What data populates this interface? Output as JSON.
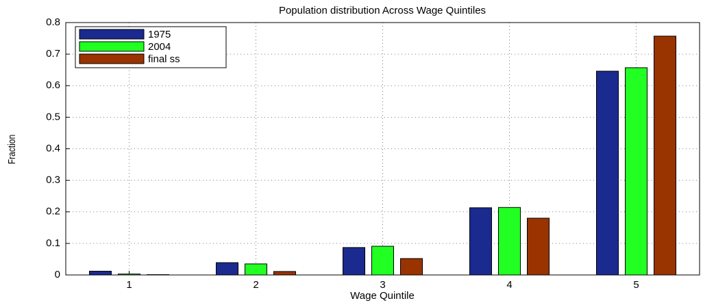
{
  "chart_data": {
    "type": "bar",
    "title": "Population distribution Across Wage Quintiles",
    "x_label": "Wage Quintile",
    "y_label": "Fraction",
    "categories": [
      "1",
      "2",
      "3",
      "4",
      "5"
    ],
    "series": [
      {
        "name": "1975",
        "color": "#1b2a8f",
        "values": [
          0.012,
          0.039,
          0.087,
          0.213,
          0.646
        ]
      },
      {
        "name": "2004",
        "color": "#22ff22",
        "values": [
          0.003,
          0.035,
          0.091,
          0.214,
          0.657
        ]
      },
      {
        "name": "final ss",
        "color": "#993300",
        "values": [
          0.001,
          0.011,
          0.052,
          0.18,
          0.757
        ]
      }
    ],
    "ylim": [
      0,
      0.8
    ],
    "yticks": [
      0,
      0.1,
      0.2,
      0.3,
      0.4,
      0.5,
      0.6,
      0.7,
      0.8
    ],
    "grid": true,
    "legend": "top-left"
  }
}
